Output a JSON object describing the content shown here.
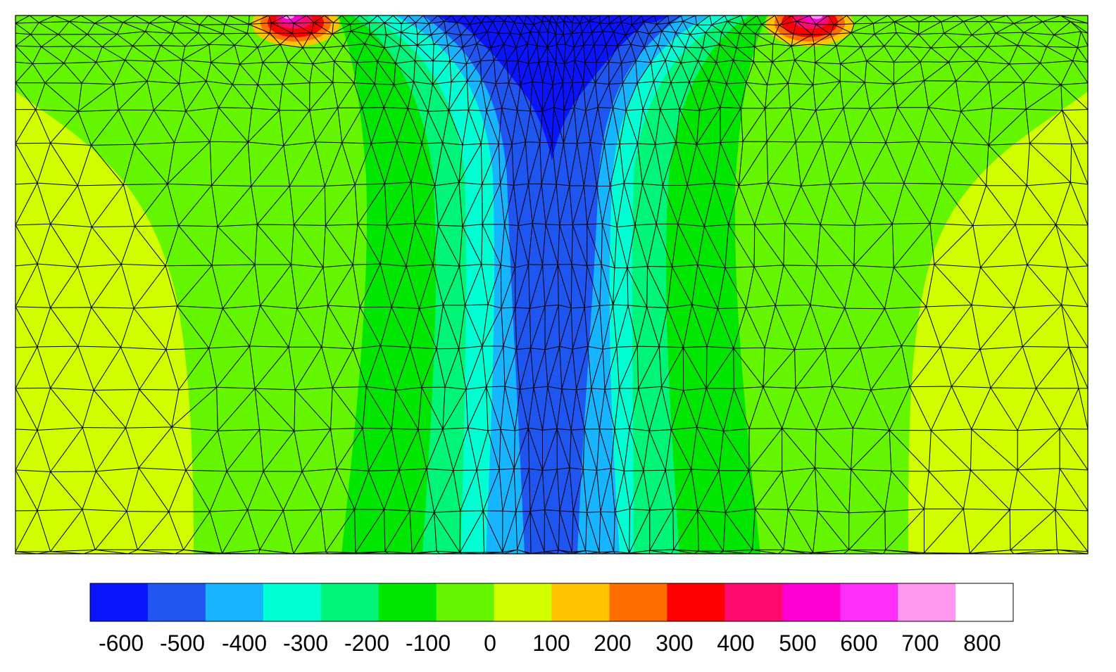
{
  "figure": {
    "type": "finite-element contour plot with triangular mesh",
    "grid": true
  },
  "colorbar": {
    "colors": [
      "#0a14ff",
      "#1f55f0",
      "#17b4ff",
      "#00ffd2",
      "#00f578",
      "#00e600",
      "#64f500",
      "#d2ff00",
      "#ffc300",
      "#ff6e00",
      "#ff0000",
      "#ff0a6e",
      "#ff00d2",
      "#ff2df5",
      "#ff96f0",
      "#ffffff"
    ],
    "tick_labels": [
      "-600",
      "-500",
      "-400",
      "-300",
      "-200",
      "-100",
      "0",
      "100",
      "200",
      "300",
      "400",
      "500",
      "600",
      "700",
      "800"
    ]
  },
  "field": {
    "description": "symmetric stress field, strong negative core below centre top, positive hot spots near top at two load points",
    "hotspots": [
      {
        "label": "left-top-hotspot",
        "value": 800
      },
      {
        "label": "right-top-hotspot",
        "value": 800
      }
    ],
    "core_min_value": -600
  }
}
